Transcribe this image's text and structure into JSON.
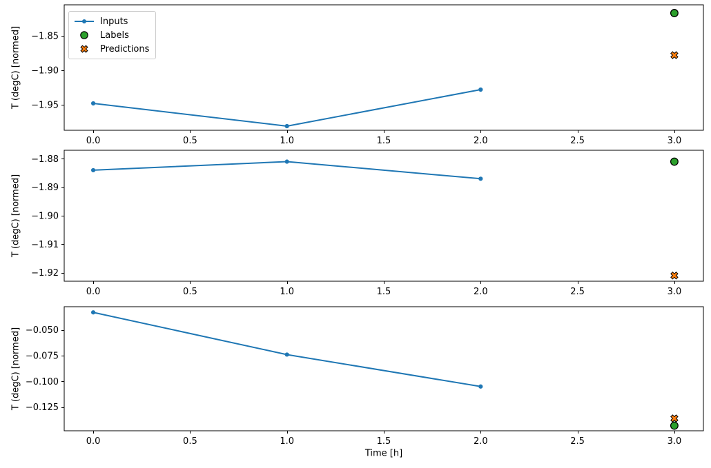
{
  "figure": {
    "background": "#ffffff",
    "xlabel": "Time [h]",
    "legend": {
      "position": "upper-left",
      "items": [
        {
          "label": "Inputs",
          "marker": "line-with-dot",
          "color": "#1f77b4"
        },
        {
          "label": "Labels",
          "marker": "filled-circle",
          "color": "#2ca02c",
          "edge_color": "#000000"
        },
        {
          "label": "Predictions",
          "marker": "filled-x",
          "color": "#ff7f0e",
          "edge_color": "#000000"
        }
      ]
    }
  },
  "chart_data": [
    {
      "type": "line",
      "title": "",
      "xlabel": "",
      "ylabel": "T (degC) [normed]",
      "xlim": [
        -0.15,
        3.15
      ],
      "ylim": [
        -1.987,
        -1.805
      ],
      "grid": false,
      "x_ticks": [
        0.0,
        0.5,
        1.0,
        1.5,
        2.0,
        2.5,
        3.0
      ],
      "x_tick_labels": [
        "0.0",
        "0.5",
        "1.0",
        "1.5",
        "2.0",
        "2.5",
        "3.0"
      ],
      "y_ticks": [
        -1.85,
        -1.9,
        -1.95
      ],
      "y_tick_labels": [
        "−1.85",
        "−1.90",
        "−1.95"
      ],
      "series": [
        {
          "name": "Inputs",
          "type": "line",
          "color": "#1f77b4",
          "x": [
            0,
            1,
            2
          ],
          "y": [
            -1.948,
            -1.981,
            -1.928
          ]
        },
        {
          "name": "Labels",
          "type": "scatter_circle",
          "color": "#2ca02c",
          "edge_color": "#000000",
          "x": [
            3
          ],
          "y": [
            -1.817
          ]
        },
        {
          "name": "Predictions",
          "type": "scatter_x",
          "color": "#ff7f0e",
          "edge_color": "#000000",
          "x": [
            3
          ],
          "y": [
            -1.878
          ]
        }
      ]
    },
    {
      "type": "line",
      "title": "",
      "xlabel": "",
      "ylabel": "T (degC) [normed]",
      "xlim": [
        -0.15,
        3.15
      ],
      "ylim": [
        -1.923,
        -1.877
      ],
      "grid": false,
      "x_ticks": [
        0.0,
        0.5,
        1.0,
        1.5,
        2.0,
        2.5,
        3.0
      ],
      "x_tick_labels": [
        "0.0",
        "0.5",
        "1.0",
        "1.5",
        "2.0",
        "2.5",
        "3.0"
      ],
      "y_ticks": [
        -1.88,
        -1.89,
        -1.9,
        -1.91,
        -1.92
      ],
      "y_tick_labels": [
        "−1.88",
        "−1.89",
        "−1.90",
        "−1.91",
        "−1.92"
      ],
      "series": [
        {
          "name": "Inputs",
          "type": "line",
          "color": "#1f77b4",
          "x": [
            0,
            1,
            2
          ],
          "y": [
            -1.884,
            -1.881,
            -1.887
          ]
        },
        {
          "name": "Labels",
          "type": "scatter_circle",
          "color": "#2ca02c",
          "edge_color": "#000000",
          "x": [
            3
          ],
          "y": [
            -1.881
          ]
        },
        {
          "name": "Predictions",
          "type": "scatter_x",
          "color": "#ff7f0e",
          "edge_color": "#000000",
          "x": [
            3
          ],
          "y": [
            -1.921
          ]
        }
      ]
    },
    {
      "type": "line",
      "title": "",
      "xlabel": "Time [h]",
      "ylabel": "T (degC) [normed]",
      "xlim": [
        -0.15,
        3.15
      ],
      "ylim": [
        -0.148,
        -0.0275
      ],
      "grid": false,
      "x_ticks": [
        0.0,
        0.5,
        1.0,
        1.5,
        2.0,
        2.5,
        3.0
      ],
      "x_tick_labels": [
        "0.0",
        "0.5",
        "1.0",
        "1.5",
        "2.0",
        "2.5",
        "3.0"
      ],
      "y_ticks": [
        -0.05,
        -0.075,
        -0.1,
        -0.125
      ],
      "y_tick_labels": [
        "−0.050",
        "−0.075",
        "−0.100",
        "−0.125"
      ],
      "series": [
        {
          "name": "Inputs",
          "type": "line",
          "color": "#1f77b4",
          "x": [
            0,
            1,
            2
          ],
          "y": [
            -0.033,
            -0.074,
            -0.105
          ]
        },
        {
          "name": "Labels",
          "type": "scatter_circle",
          "color": "#2ca02c",
          "edge_color": "#000000",
          "x": [
            3
          ],
          "y": [
            -0.143
          ]
        },
        {
          "name": "Predictions",
          "type": "scatter_x",
          "color": "#ff7f0e",
          "edge_color": "#000000",
          "x": [
            3
          ],
          "y": [
            -0.136
          ]
        }
      ]
    }
  ]
}
